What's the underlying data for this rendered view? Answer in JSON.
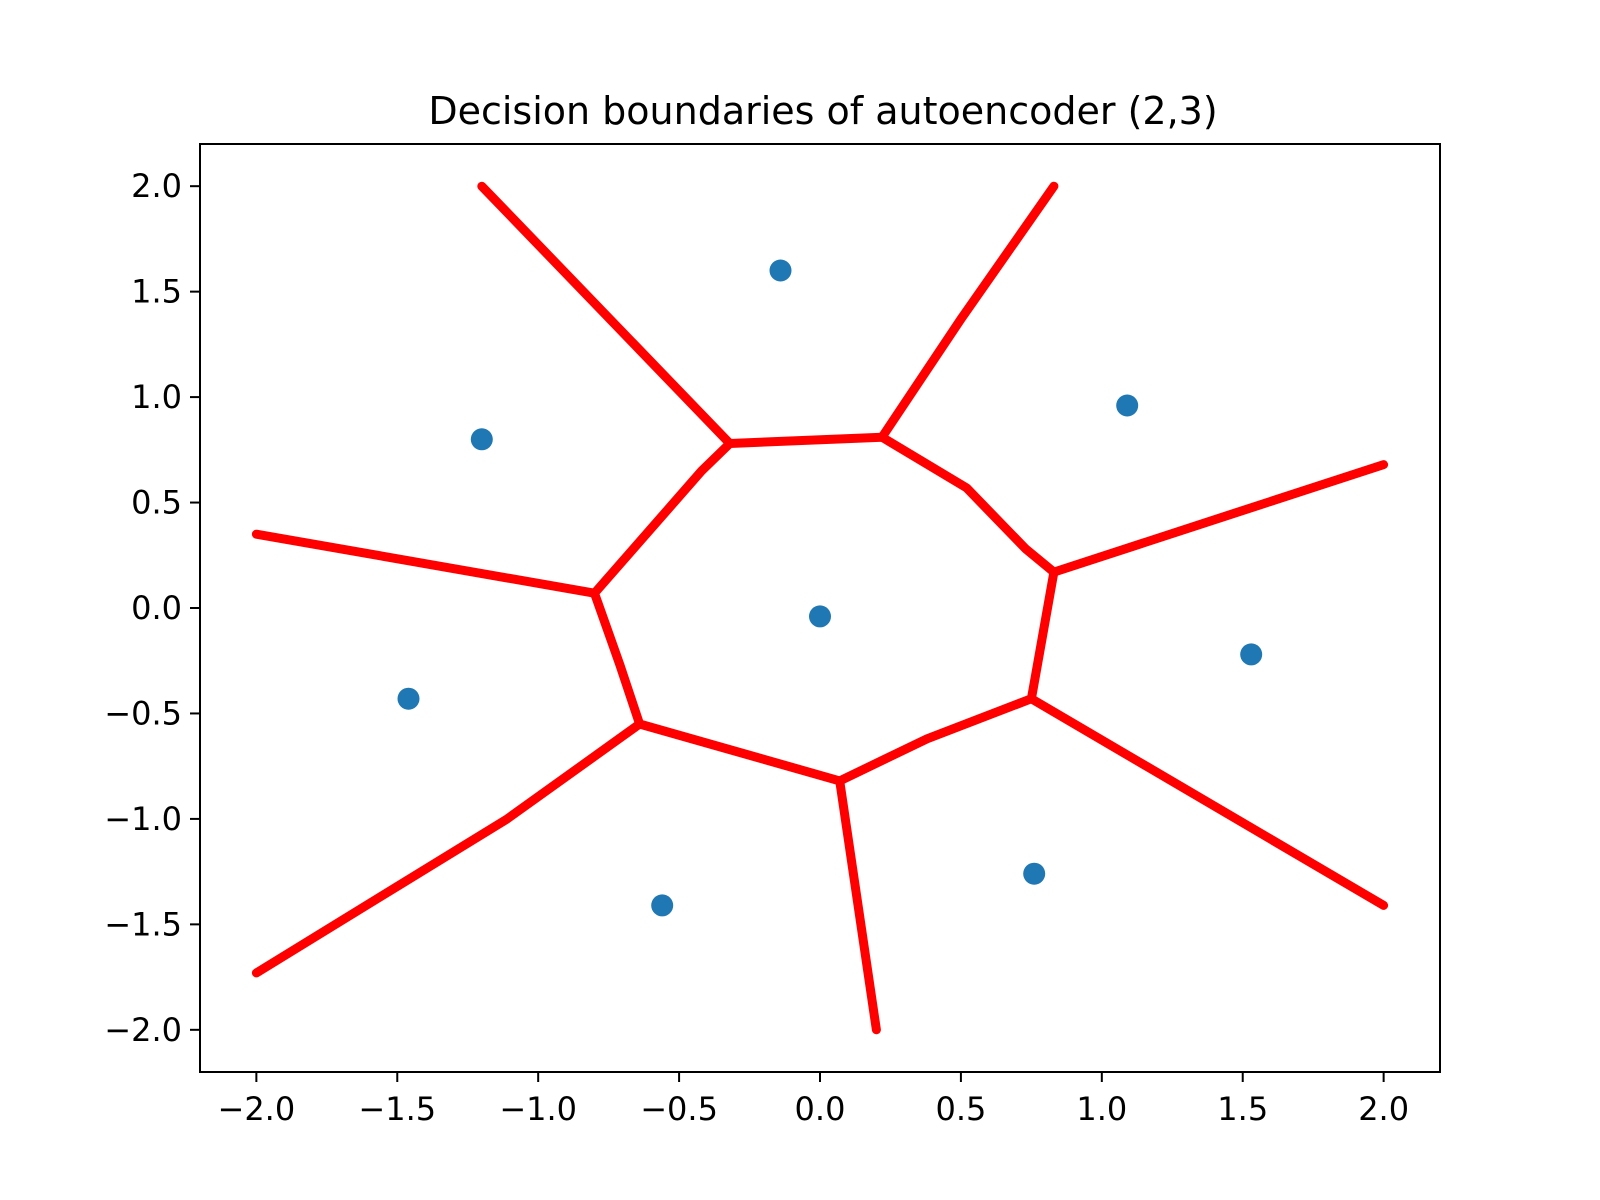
{
  "chart_data": {
    "type": "scatter",
    "title": "Decision boundaries of autoencoder (2,3)",
    "xlabel": "",
    "ylabel": "",
    "xlim": [
      -2.2,
      2.2
    ],
    "ylim": [
      -2.2,
      2.2
    ],
    "x_ticks": [
      -2.0,
      -1.5,
      -1.0,
      -0.5,
      0.0,
      0.5,
      1.0,
      1.5,
      2.0
    ],
    "y_ticks": [
      -2.0,
      -1.5,
      -1.0,
      -0.5,
      0.0,
      0.5,
      1.0,
      1.5,
      2.0
    ],
    "x_tick_labels": [
      "−2.0",
      "−1.5",
      "−1.0",
      "−0.5",
      "0.0",
      "0.5",
      "1.0",
      "1.5",
      "2.0"
    ],
    "y_tick_labels": [
      "−2.0",
      "−1.5",
      "−1.0",
      "−0.5",
      "0.0",
      "0.5",
      "1.0",
      "1.5",
      "2.0"
    ],
    "grid": false,
    "series": [
      {
        "type": "scatter",
        "color": "#1f77b4",
        "points": [
          {
            "x": -0.14,
            "y": 1.6
          },
          {
            "x": 1.09,
            "y": 0.96
          },
          {
            "x": -1.2,
            "y": 0.8
          },
          {
            "x": 0.0,
            "y": -0.04
          },
          {
            "x": 1.53,
            "y": -0.22
          },
          {
            "x": -1.46,
            "y": -0.43
          },
          {
            "x": 0.76,
            "y": -1.26
          },
          {
            "x": -0.56,
            "y": -1.41
          }
        ]
      },
      {
        "type": "line",
        "color": "#ff0000",
        "segments": [
          [
            [
              -0.32,
              0.78
            ],
            [
              0.22,
              0.81
            ],
            [
              0.52,
              0.57
            ],
            [
              0.73,
              0.28
            ],
            [
              0.83,
              0.17
            ],
            [
              0.75,
              -0.43
            ],
            [
              0.38,
              -0.62
            ],
            [
              0.07,
              -0.82
            ],
            [
              -0.64,
              -0.55
            ],
            [
              -0.71,
              -0.27
            ],
            [
              -0.8,
              0.07
            ],
            [
              -0.42,
              0.65
            ],
            [
              -0.32,
              0.78
            ]
          ],
          [
            [
              -0.32,
              0.78
            ],
            [
              -1.2,
              2.0
            ]
          ],
          [
            [
              0.22,
              0.81
            ],
            [
              0.5,
              1.37
            ],
            [
              0.83,
              2.0
            ]
          ],
          [
            [
              0.83,
              0.17
            ],
            [
              2.0,
              0.68
            ]
          ],
          [
            [
              0.75,
              -0.43
            ],
            [
              2.0,
              -1.41
            ]
          ],
          [
            [
              0.07,
              -0.82
            ],
            [
              0.2,
              -2.0
            ]
          ],
          [
            [
              -0.64,
              -0.55
            ],
            [
              -1.11,
              -1.0
            ],
            [
              -2.0,
              -1.73
            ]
          ],
          [
            [
              -0.8,
              0.07
            ],
            [
              -2.0,
              0.35
            ]
          ]
        ]
      }
    ]
  }
}
